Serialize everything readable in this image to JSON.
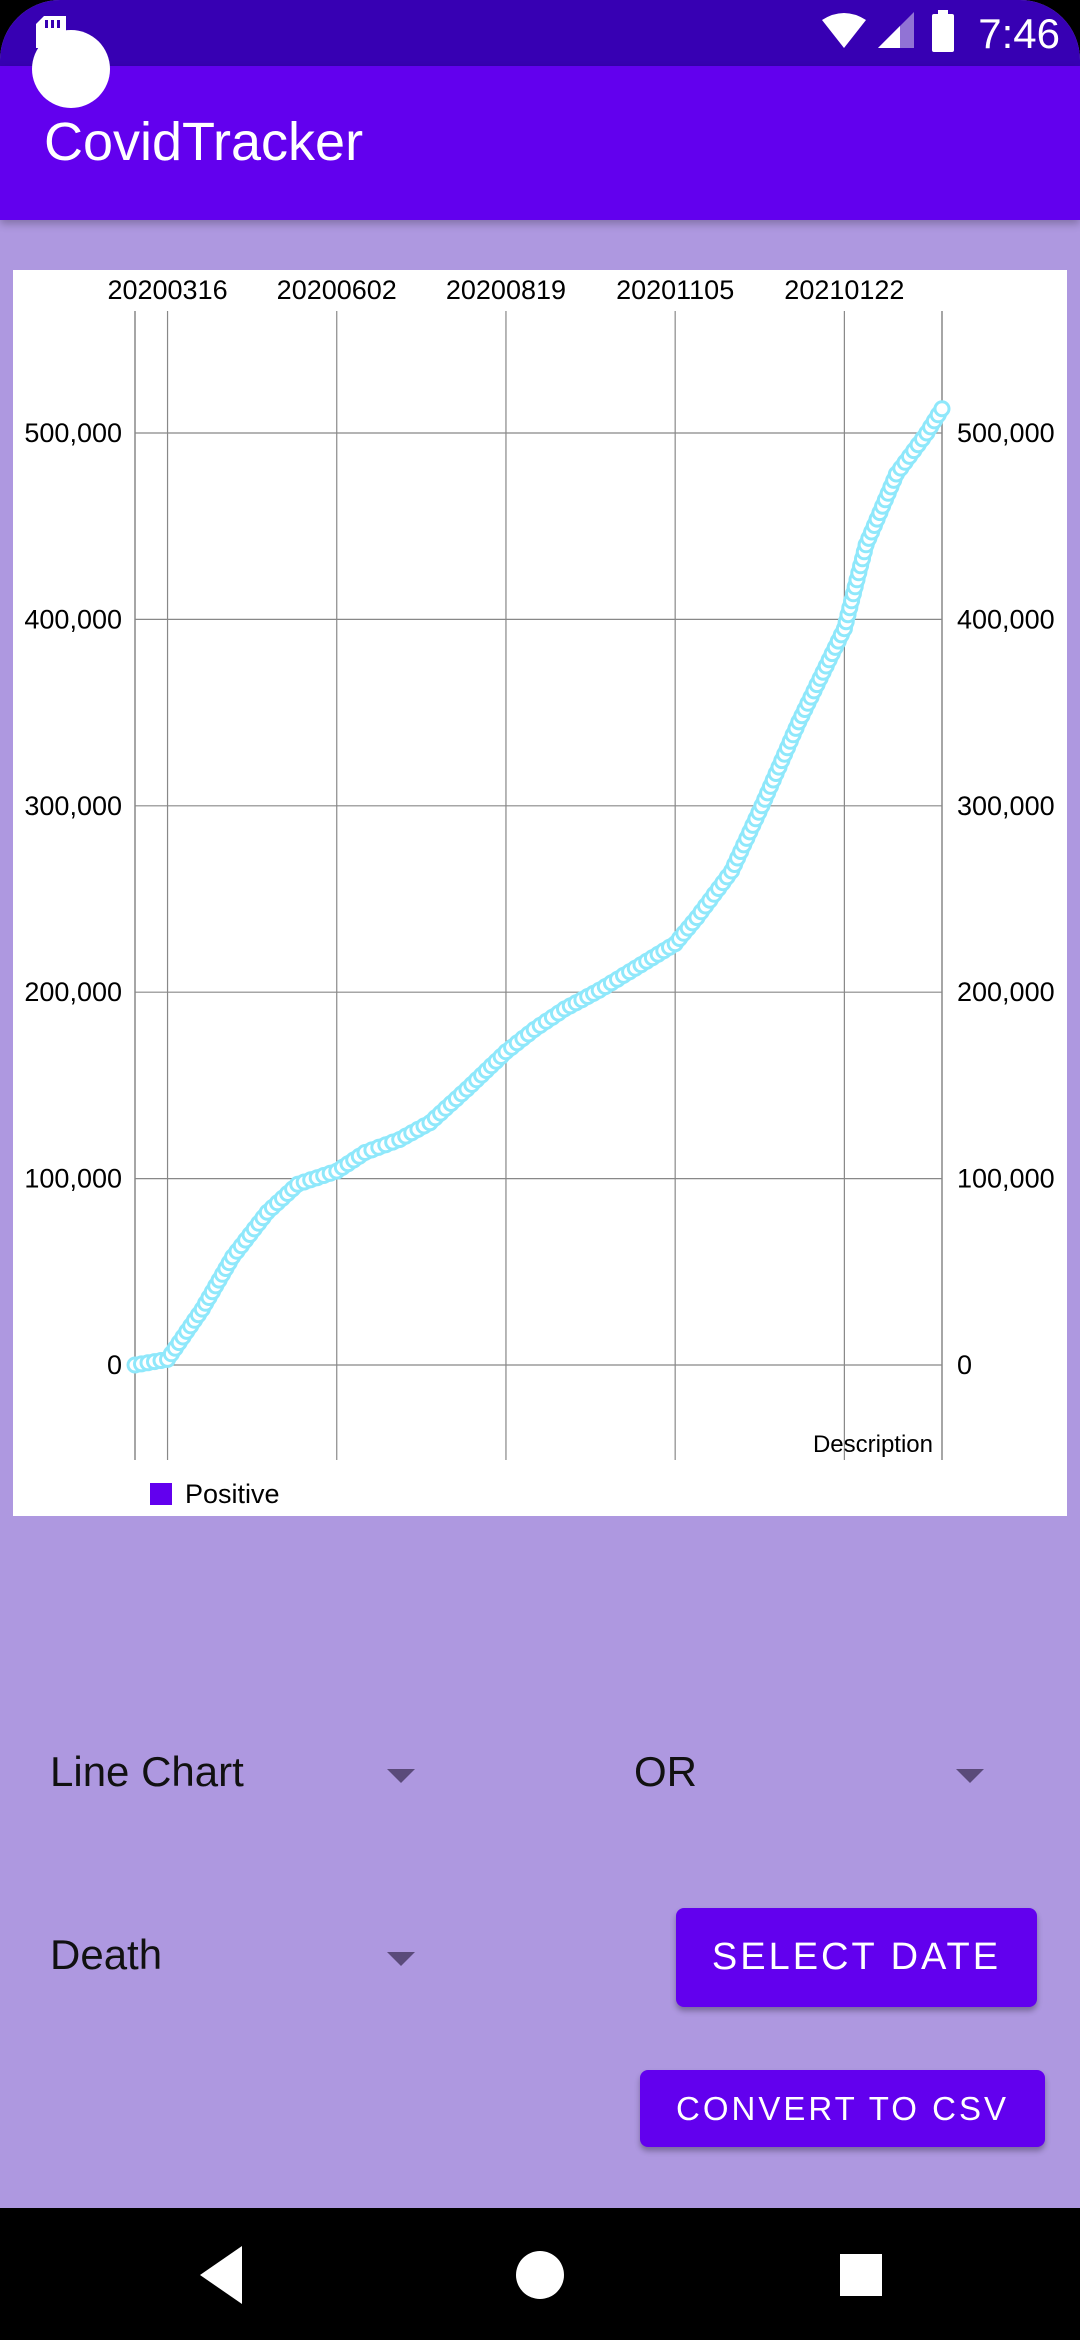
{
  "status_bar": {
    "time": "7:46",
    "icons": [
      "sd-card-icon",
      "wifi-icon",
      "signal-icon",
      "battery-icon"
    ]
  },
  "app_bar": {
    "title": "CovidTracker"
  },
  "chart": {
    "description": "Description",
    "legend_label": "Positive",
    "legend_color": "#6200ee",
    "line_color": "#8fe8fb"
  },
  "chart_data": {
    "type": "line",
    "x_tick_labels": [
      "20200316",
      "20200602",
      "20200819",
      "20201105",
      "20210122"
    ],
    "y_tick_labels": [
      "0",
      "100,000",
      "200,000",
      "300,000",
      "400,000",
      "500,000"
    ],
    "ylim": [
      0,
      500000
    ],
    "legend": [
      "Positive"
    ],
    "grid": true,
    "series": [
      {
        "name": "Positive",
        "color": "#8fe8fb",
        "x": [
          "20200301",
          "20200316",
          "20200401",
          "20200415",
          "20200501",
          "20200515",
          "20200602",
          "20200615",
          "20200701",
          "20200715",
          "20200801",
          "20200819",
          "20200901",
          "20200915",
          "20201001",
          "20201015",
          "20201105",
          "20201115",
          "20201201",
          "20201215",
          "20210101",
          "20210122",
          "20210201",
          "20210215",
          "20210301",
          "20210308"
        ],
        "values": [
          0,
          3000,
          30000,
          58000,
          82000,
          97000,
          104000,
          114000,
          121000,
          130000,
          148000,
          168000,
          180000,
          191000,
          201000,
          211000,
          226000,
          240000,
          265000,
          300000,
          345000,
          395000,
          440000,
          478000,
          500000,
          513000
        ]
      }
    ]
  },
  "controls": {
    "chart_type_select": "Line Chart",
    "state_select": "OR",
    "metric_select": "Death",
    "select_date_label": "SELECT DATE",
    "convert_csv_label": "CONVERT TO CSV"
  },
  "nav": {
    "icons": [
      "back-icon",
      "home-icon",
      "recents-icon"
    ]
  }
}
